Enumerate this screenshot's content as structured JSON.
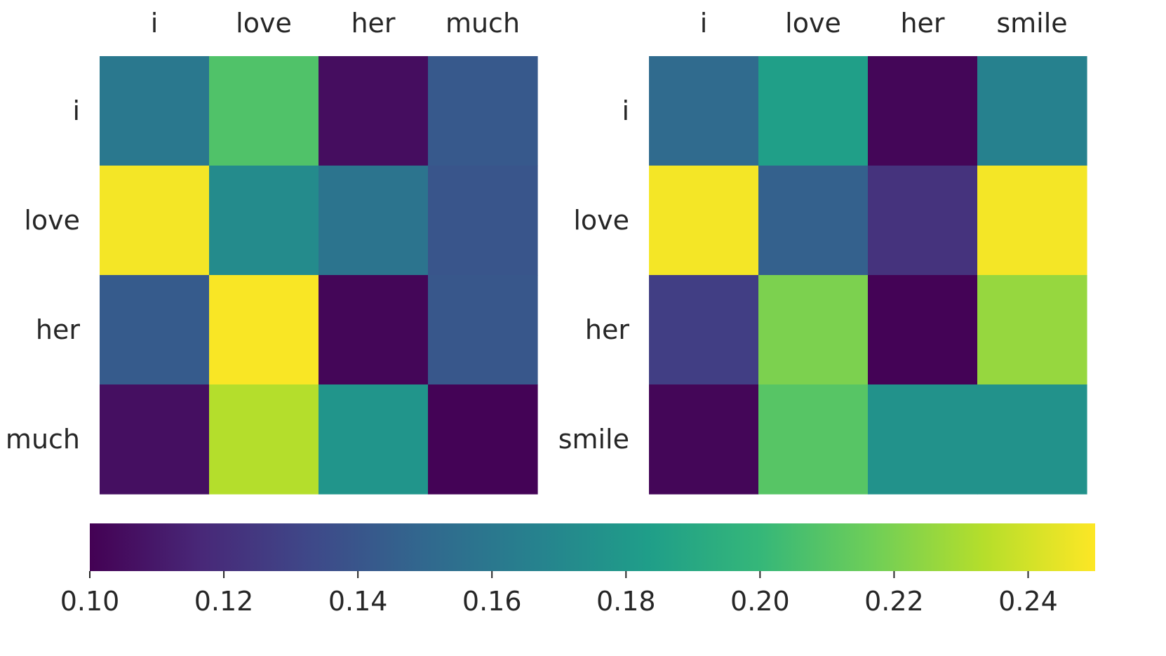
{
  "chart_data": [
    {
      "type": "heatmap",
      "title": "",
      "x_labels": [
        "i",
        "love",
        "her",
        "much"
      ],
      "y_labels": [
        "i",
        "love",
        "her",
        "much"
      ],
      "values": [
        [
          0.16,
          0.208,
          0.105,
          0.142
        ],
        [
          0.248,
          0.172,
          0.158,
          0.14
        ],
        [
          0.143,
          0.249,
          0.102,
          0.141
        ],
        [
          0.106,
          0.233,
          0.178,
          0.101
        ]
      ]
    },
    {
      "type": "heatmap",
      "title": "",
      "x_labels": [
        "i",
        "love",
        "her",
        "smile"
      ],
      "y_labels": [
        "i",
        "love",
        "her",
        "smile"
      ],
      "values": [
        [
          0.152,
          0.184,
          0.102,
          0.166
        ],
        [
          0.248,
          0.146,
          0.122,
          0.248
        ],
        [
          0.128,
          0.22,
          0.101,
          0.226
        ],
        [
          0.102,
          0.21,
          0.176,
          0.176
        ]
      ]
    }
  ],
  "colorbar": {
    "colormap": "viridis",
    "range": [
      0.1,
      0.25
    ],
    "ticks": [
      "0.10",
      "0.12",
      "0.14",
      "0.16",
      "0.18",
      "0.20",
      "0.22",
      "0.24"
    ]
  },
  "colors": {
    "viridis_stops": [
      "#440154",
      "#482878",
      "#3e4989",
      "#31688e",
      "#26828e",
      "#1f9e89",
      "#35b779",
      "#6ece58",
      "#b5de2b",
      "#fde725"
    ]
  }
}
